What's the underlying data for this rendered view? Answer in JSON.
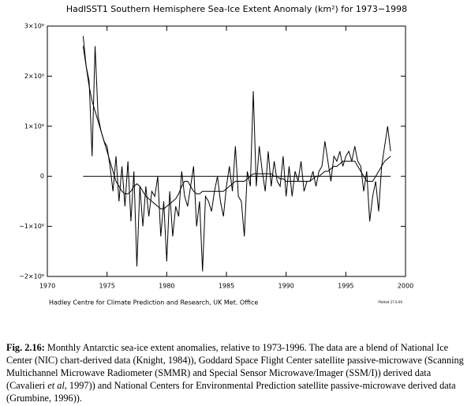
{
  "chart_data": {
    "type": "line",
    "title": "HadISST1 Southern Hemisphere Sea-Ice Extent Anomaly (km²) for 1973−1998",
    "credit": "Hadley Centre for Climate Prediction and Research, UK Met. Office",
    "stamp": "Plotted 27.6.00",
    "xlim": [
      1970,
      2000
    ],
    "xticks": [
      1970,
      1975,
      1980,
      1985,
      1990,
      1995,
      2000
    ],
    "ylim": [
      -2000000,
      3000000
    ],
    "yticks": [
      {
        "value": -2000000,
        "label": "−2×10⁶"
      },
      {
        "value": -1000000,
        "label": "−1×10⁶"
      },
      0,
      {
        "value": 1000000,
        "label": "1×10⁶"
      },
      {
        "value": 2000000,
        "label": "2×10⁶"
      },
      {
        "value": 3000000,
        "label": "3×10⁶"
      }
    ],
    "color": "#000000",
    "x": [
      1973,
      1973.25,
      1973.5,
      1973.75,
      1974,
      1974.25,
      1974.5,
      1974.75,
      1975,
      1975.25,
      1975.5,
      1975.75,
      1976,
      1976.25,
      1976.5,
      1976.75,
      1977,
      1977.25,
      1977.5,
      1977.75,
      1978,
      1978.25,
      1978.5,
      1978.75,
      1979,
      1979.25,
      1979.5,
      1979.75,
      1980,
      1980.25,
      1980.5,
      1980.75,
      1981,
      1981.25,
      1981.5,
      1981.75,
      1982,
      1982.25,
      1982.5,
      1982.75,
      1983,
      1983.25,
      1983.5,
      1983.75,
      1984,
      1984.25,
      1984.5,
      1984.75,
      1985,
      1985.25,
      1985.5,
      1985.75,
      1986,
      1986.25,
      1986.5,
      1986.75,
      1987,
      1987.25,
      1987.5,
      1987.75,
      1988,
      1988.25,
      1988.5,
      1988.75,
      1989,
      1989.25,
      1989.5,
      1989.75,
      1990,
      1990.25,
      1990.5,
      1990.75,
      1991,
      1991.25,
      1991.5,
      1991.75,
      1992,
      1992.25,
      1992.5,
      1992.75,
      1993,
      1993.25,
      1993.5,
      1993.75,
      1994,
      1994.25,
      1994.5,
      1994.75,
      1995,
      1995.25,
      1995.5,
      1995.75,
      1996,
      1996.25,
      1996.5,
      1996.75,
      1997,
      1997.25,
      1997.5,
      1997.75,
      1998,
      1998.25,
      1998.5,
      1998.75
    ],
    "series": [
      {
        "values": [
          2800000,
          2200000,
          1900000,
          400000,
          2600000,
          1200000,
          900000,
          700000,
          600000,
          200000,
          -300000,
          400000,
          -500000,
          200000,
          -600000,
          300000,
          -900000,
          100000,
          -1800000,
          -200000,
          -1000000,
          -200000,
          -800000,
          -300000,
          -400000,
          0,
          -1200000,
          -500000,
          -1700000,
          -300000,
          -1200000,
          -600000,
          -800000,
          100000,
          -400000,
          -600000,
          -200000,
          200000,
          -1000000,
          -500000,
          -1900000,
          -400000,
          -500000,
          -700000,
          -300000,
          0,
          -500000,
          -800000,
          -200000,
          200000,
          -300000,
          600000,
          -400000,
          -500000,
          -1200000,
          100000,
          -200000,
          1700000,
          -200000,
          600000,
          100000,
          -300000,
          500000,
          -200000,
          300000,
          -100000,
          -200000,
          400000,
          -400000,
          200000,
          -400000,
          100000,
          -100000,
          300000,
          -300000,
          -100000,
          -100000,
          100000,
          -200000,
          100000,
          200000,
          700000,
          300000,
          -100000,
          400000,
          300000,
          500000,
          200000,
          400000,
          500000,
          300000,
          600000,
          300000,
          200000,
          -300000,
          100000,
          -900000,
          -400000,
          -100000,
          -700000,
          200000,
          600000,
          1000000,
          500000
        ]
      },
      {
        "values": [
          2600000,
          2200000,
          1800000,
          1500000,
          1300000,
          1100000,
          900000,
          700000,
          500000,
          300000,
          100000,
          -100000,
          -200000,
          -300000,
          -350000,
          -350000,
          -300000,
          -200000,
          -150000,
          -200000,
          -300000,
          -400000,
          -450000,
          -500000,
          -550000,
          -600000,
          -650000,
          -650000,
          -600000,
          -550000,
          -500000,
          -450000,
          -350000,
          -200000,
          -100000,
          -100000,
          -200000,
          -300000,
          -350000,
          -350000,
          -300000,
          -300000,
          -300000,
          -300000,
          -300000,
          -300000,
          -300000,
          -300000,
          -250000,
          -200000,
          -150000,
          -100000,
          -100000,
          -100000,
          -100000,
          -50000,
          0,
          50000,
          50000,
          50000,
          50000,
          50000,
          50000,
          50000,
          0,
          0,
          -50000,
          -50000,
          -100000,
          -100000,
          -100000,
          -100000,
          -100000,
          -100000,
          -100000,
          -100000,
          -100000,
          -50000,
          0,
          0,
          50000,
          100000,
          100000,
          150000,
          200000,
          200000,
          250000,
          300000,
          300000,
          300000,
          300000,
          300000,
          200000,
          100000,
          0,
          -100000,
          -100000,
          -100000,
          0,
          100000,
          200000,
          300000,
          350000,
          400000
        ]
      }
    ]
  },
  "caption": {
    "label": "Fig. 2.16:",
    "parts": [
      "Monthly Antarctic sea-ice extent anomalies, relative to 1973-1996. The data are a blend of National Ice Center (NIC) chart-derived data (Knight, 1984)), Goddard Space Flight Center satellite passive-microwave (Scanning Multichannel Microwave Radiometer (SMMR) and Special Sensor Microwave/Imager (SSM/I)) derived data (Cavalieri ",
      "et al",
      ", 1997)) and National Centers for Environmental Prediction satellite passive-microwave derived data (Grumbine, 1996))."
    ]
  }
}
